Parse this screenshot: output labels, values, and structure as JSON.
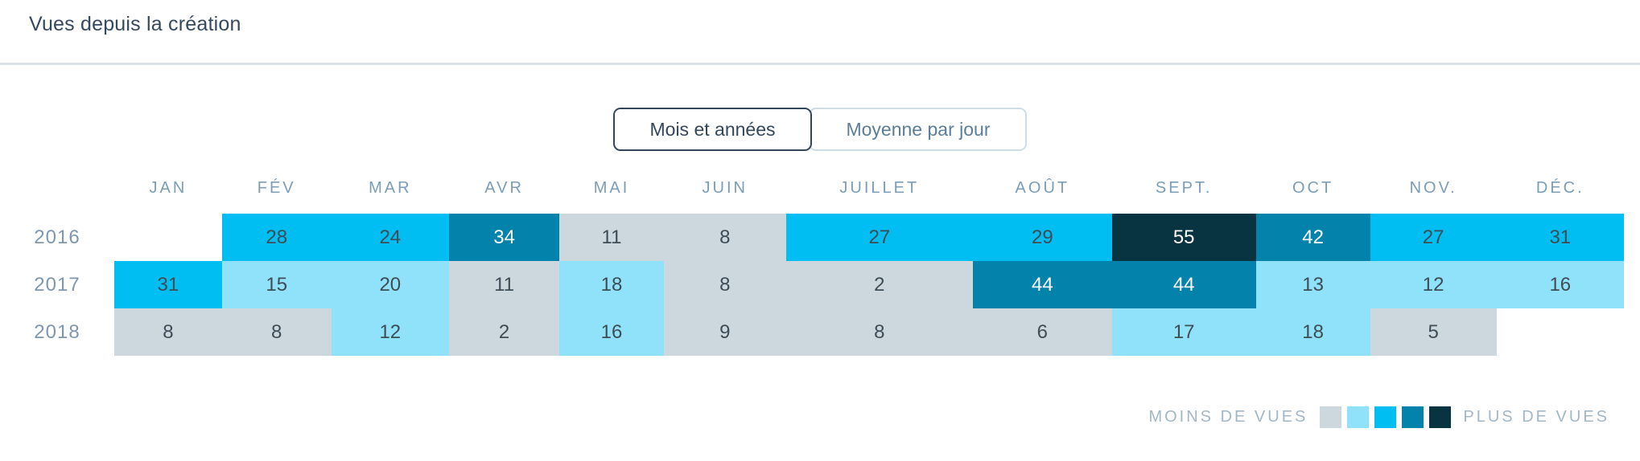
{
  "header": {
    "title": "Vues depuis la création"
  },
  "toggle": {
    "options": [
      {
        "label": "Mois et années",
        "active": true
      },
      {
        "label": "Moyenne par jour",
        "active": false
      }
    ]
  },
  "chart_data": {
    "type": "heatmap",
    "title": "Vues depuis la création",
    "columns": [
      "JAN",
      "FÉV",
      "MAR",
      "AVR",
      "MAI",
      "JUIN",
      "JUILLET",
      "AOÛT",
      "SEPT.",
      "OCT",
      "NOV.",
      "DÉC."
    ],
    "rows": [
      {
        "label": "2016",
        "values": [
          null,
          28,
          24,
          34,
          11,
          8,
          27,
          29,
          55,
          42,
          27,
          31
        ]
      },
      {
        "label": "2017",
        "values": [
          31,
          15,
          20,
          11,
          18,
          8,
          2,
          44,
          44,
          13,
          12,
          16
        ]
      },
      {
        "label": "2018",
        "values": [
          8,
          8,
          12,
          2,
          16,
          9,
          8,
          6,
          17,
          18,
          5,
          null
        ]
      }
    ],
    "color_scale": {
      "levels": [
        "#cdd7de",
        "#90e2fa",
        "#00bdf2",
        "#0383ab",
        "#073440"
      ],
      "thresholds": [
        12,
        22,
        32,
        45
      ],
      "light_text_from_level": 3,
      "dark_text_color": "#3e4c56",
      "light_text_color": "#ffffff"
    },
    "legend": {
      "min_label": "MOINS DE VUES",
      "max_label": "PLUS DE VUES"
    },
    "layout": {
      "grid": false,
      "legend_position": "bottom-right"
    }
  }
}
